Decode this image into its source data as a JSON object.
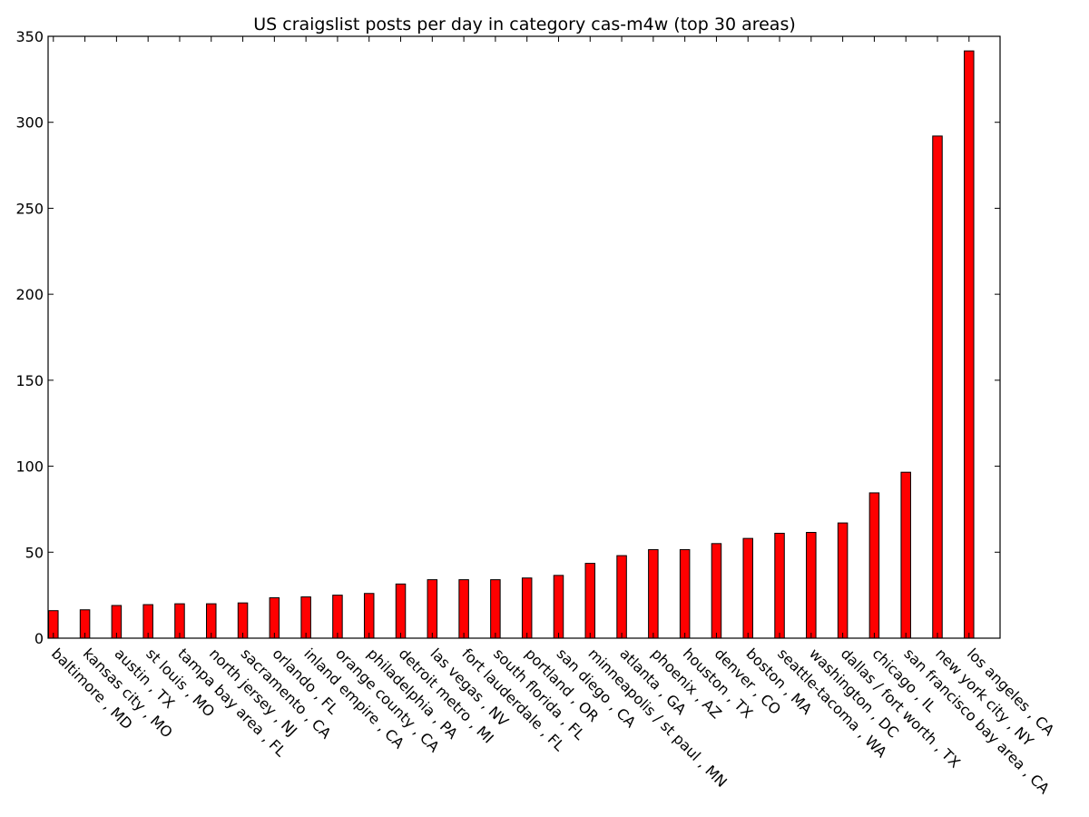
{
  "chart_data": {
    "type": "bar",
    "title": "US craigslist posts per day in category cas-m4w (top 30 areas)",
    "xlabel": "",
    "ylabel": "",
    "ylim": [
      0,
      350
    ],
    "yticks": [
      0,
      50,
      100,
      150,
      200,
      250,
      300,
      350
    ],
    "grid": false,
    "bar_color": "#ff0000",
    "edge_color": "#000000",
    "categories": [
      "baltimore , MD",
      "kansas city , MO",
      "austin , TX",
      "st louis , MO",
      "tampa bay area , FL",
      "north jersey , NJ",
      "sacramento , CA",
      "orlando , FL",
      "inland empire , CA",
      "orange county , CA",
      "philadelphia , PA",
      "detroit metro , MI",
      "las vegas , NV",
      "fort lauderdale , FL",
      "south florida , FL",
      "portland , OR",
      "san diego , CA",
      "minneapolis / st paul , MN",
      "atlanta , GA",
      "phoenix , AZ",
      "houston , TX",
      "denver , CO",
      "boston , MA",
      "seattle-tacoma , WA",
      "washington , DC",
      "dallas / fort worth , TX",
      "chicago , IL",
      "san francisco bay area , CA",
      "new york city , NY",
      "los angeles , CA"
    ],
    "values": [
      16,
      16.5,
      19,
      19.5,
      20,
      20,
      20.5,
      23.5,
      24,
      25,
      26,
      31.5,
      34,
      34,
      34,
      35,
      36.5,
      43.5,
      48,
      51.5,
      51.5,
      55,
      58,
      61,
      61.5,
      67,
      84.5,
      96.5,
      292,
      341.5
    ]
  }
}
